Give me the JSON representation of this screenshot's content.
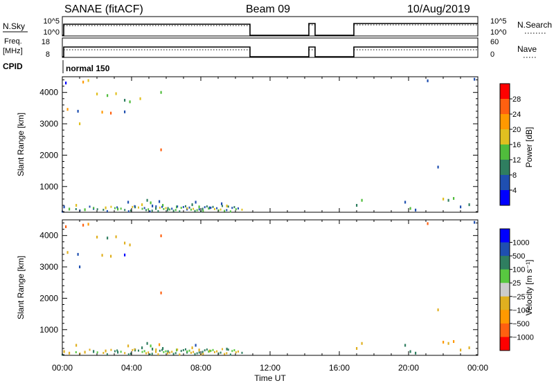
{
  "header": {
    "station": "SANAE (fitACF)",
    "beam": "Beam 09",
    "date": "10/Aug/2019"
  },
  "status_panels": {
    "nsky": {
      "label": "N.Sky",
      "tick_top": "10^5",
      "tick_bottom": "10^0"
    },
    "nsearch": {
      "label": "N.Search",
      "tick_top": "10^5",
      "tick_bottom": "10^0"
    },
    "freq": {
      "label_line1": "Freq.",
      "label_line2": "[MHz]",
      "tick_top": "18",
      "tick_bottom": "8"
    },
    "nave": {
      "label": "Nave",
      "tick_top": "60",
      "tick_bottom": "0"
    },
    "cpid": {
      "label": "CPID",
      "mode": "normal 150"
    }
  },
  "chart_data": [
    {
      "type": "scatter",
      "title": "",
      "xlabel": "",
      "ylabel": "Slant Range [km]",
      "xlim": [
        0,
        24
      ],
      "ylim": [
        180,
        4500
      ],
      "yticks": [
        1000,
        2000,
        3000,
        4000
      ],
      "colorbar": {
        "label": "Power [dB]",
        "ticks": [
          "4",
          "8",
          "12",
          "16",
          "20",
          "24",
          "28"
        ],
        "range": [
          0,
          32
        ],
        "colors": [
          "#0000ff",
          "#1f4fb0",
          "#2f7e60",
          "#50bd3c",
          "#e0c020",
          "#ff9900",
          "#ff6010",
          "#ff0000"
        ]
      },
      "points": [
        {
          "t": 0.2,
          "r": 4300,
          "v": 3
        },
        {
          "t": 1.2,
          "r": 4330,
          "v": 22
        },
        {
          "t": 1.5,
          "r": 4380,
          "v": 18
        },
        {
          "t": 2.0,
          "r": 3950,
          "v": 16
        },
        {
          "t": 2.6,
          "r": 3900,
          "v": 14
        },
        {
          "t": 3.1,
          "r": 3960,
          "v": 16
        },
        {
          "t": 3.6,
          "r": 3750,
          "v": 10
        },
        {
          "t": 3.9,
          "r": 3700,
          "v": 12
        },
        {
          "t": 0.3,
          "r": 3460,
          "v": 22
        },
        {
          "t": 0.9,
          "r": 3400,
          "v": 4
        },
        {
          "t": 2.3,
          "r": 3370,
          "v": 20
        },
        {
          "t": 2.8,
          "r": 3340,
          "v": 24
        },
        {
          "t": 3.6,
          "r": 3380,
          "v": 6
        },
        {
          "t": 1.0,
          "r": 3000,
          "v": 16
        },
        {
          "t": 4.5,
          "r": 3800,
          "v": 16
        },
        {
          "t": 5.7,
          "r": 4000,
          "v": 12
        },
        {
          "t": 5.7,
          "r": 2170,
          "v": 26
        },
        {
          "t": 21.1,
          "r": 4370,
          "v": 4
        },
        {
          "t": 23.8,
          "r": 4420,
          "v": 6
        },
        {
          "t": 21.7,
          "r": 1620,
          "v": 6
        },
        {
          "t": 0.1,
          "r": 350,
          "v": 4
        },
        {
          "t": 0.4,
          "r": 280,
          "v": 12
        },
        {
          "t": 0.8,
          "r": 400,
          "v": 18
        },
        {
          "t": 1.3,
          "r": 260,
          "v": 12
        },
        {
          "t": 1.8,
          "r": 300,
          "v": 4
        },
        {
          "t": 2.5,
          "r": 320,
          "v": 18
        },
        {
          "t": 3.2,
          "r": 280,
          "v": 12
        },
        {
          "t": 3.8,
          "r": 500,
          "v": 4
        },
        {
          "t": 4.2,
          "r": 350,
          "v": 8
        },
        {
          "t": 4.6,
          "r": 420,
          "v": 16
        },
        {
          "t": 4.9,
          "r": 560,
          "v": 8
        },
        {
          "t": 5.1,
          "r": 480,
          "v": 12
        },
        {
          "t": 5.2,
          "r": 380,
          "v": 4
        },
        {
          "t": 5.4,
          "r": 300,
          "v": 8
        },
        {
          "t": 5.6,
          "r": 520,
          "v": 4
        },
        {
          "t": 5.8,
          "r": 400,
          "v": 12
        },
        {
          "t": 6.1,
          "r": 300,
          "v": 8
        },
        {
          "t": 6.6,
          "r": 350,
          "v": 12
        },
        {
          "t": 7.2,
          "r": 280,
          "v": 4
        },
        {
          "t": 7.5,
          "r": 420,
          "v": 8
        },
        {
          "t": 7.7,
          "r": 500,
          "v": 4
        },
        {
          "t": 7.9,
          "r": 350,
          "v": 12
        },
        {
          "t": 8.1,
          "r": 280,
          "v": 8
        },
        {
          "t": 8.5,
          "r": 320,
          "v": 4
        },
        {
          "t": 9.2,
          "r": 450,
          "v": 4
        },
        {
          "t": 9.5,
          "r": 380,
          "v": 16
        },
        {
          "t": 17.3,
          "r": 560,
          "v": 12
        },
        {
          "t": 17.0,
          "r": 400,
          "v": 8
        },
        {
          "t": 19.8,
          "r": 500,
          "v": 4
        },
        {
          "t": 20.1,
          "r": 300,
          "v": 12
        },
        {
          "t": 20.4,
          "r": 250,
          "v": 4
        },
        {
          "t": 22.0,
          "r": 600,
          "v": 16
        },
        {
          "t": 22.3,
          "r": 560,
          "v": 8
        },
        {
          "t": 22.6,
          "r": 620,
          "v": 12
        },
        {
          "t": 23.0,
          "r": 350,
          "v": 4
        },
        {
          "t": 23.5,
          "r": 420,
          "v": 8
        }
      ]
    },
    {
      "type": "scatter",
      "title": "",
      "xlabel": "Time UT",
      "ylabel": "Slant Range [km]",
      "xlim": [
        0,
        24
      ],
      "ylim": [
        180,
        4500
      ],
      "xticks": [
        "00:00",
        "04:00",
        "08:00",
        "12:00",
        "16:00",
        "20:00",
        "00:00"
      ],
      "yticks": [
        1000,
        2000,
        3000,
        4000
      ],
      "colorbar": {
        "label": "Velocity [m s⁻¹]",
        "ticks": [
          "1000",
          "500",
          "100",
          "25",
          "−25",
          "−100",
          "−500",
          "−1000"
        ],
        "colors": [
          "#0000ff",
          "#1f4fb0",
          "#2f7e60",
          "#58c840",
          "#cccccc",
          "#e0b020",
          "#ff9900",
          "#ff6010",
          "#ff0000"
        ]
      },
      "points": [
        {
          "t": 0.2,
          "r": 4280,
          "v": -1000
        },
        {
          "t": 1.2,
          "r": 4330,
          "v": -1000
        },
        {
          "t": 1.5,
          "r": 4360,
          "v": -500
        },
        {
          "t": 2.0,
          "r": 3950,
          "v": -100
        },
        {
          "t": 2.6,
          "r": 3920,
          "v": 100
        },
        {
          "t": 3.1,
          "r": 3960,
          "v": -100
        },
        {
          "t": 3.6,
          "r": 3760,
          "v": -100
        },
        {
          "t": 3.9,
          "r": 3700,
          "v": -100
        },
        {
          "t": 0.3,
          "r": 3460,
          "v": -100
        },
        {
          "t": 0.9,
          "r": 3400,
          "v": 500
        },
        {
          "t": 2.3,
          "r": 3370,
          "v": -100
        },
        {
          "t": 2.8,
          "r": 3340,
          "v": -100
        },
        {
          "t": 3.6,
          "r": 3380,
          "v": 1000
        },
        {
          "t": 1.0,
          "r": 3000,
          "v": 500
        },
        {
          "t": 5.7,
          "r": 3990,
          "v": -1000
        },
        {
          "t": 5.7,
          "r": 2170,
          "v": -1000
        },
        {
          "t": 21.1,
          "r": 4380,
          "v": -1000
        },
        {
          "t": 23.8,
          "r": 4420,
          "v": 500
        },
        {
          "t": 21.7,
          "r": 1630,
          "v": -100
        },
        {
          "t": 0.1,
          "r": 300,
          "v": -100
        },
        {
          "t": 0.4,
          "r": 250,
          "v": -100
        },
        {
          "t": 0.8,
          "r": 500,
          "v": -100
        },
        {
          "t": 1.3,
          "r": 280,
          "v": -100
        },
        {
          "t": 1.8,
          "r": 300,
          "v": 100
        },
        {
          "t": 2.5,
          "r": 320,
          "v": -100
        },
        {
          "t": 3.2,
          "r": 280,
          "v": 100
        },
        {
          "t": 3.8,
          "r": 480,
          "v": -100
        },
        {
          "t": 4.2,
          "r": 350,
          "v": 100
        },
        {
          "t": 4.6,
          "r": 420,
          "v": 100
        },
        {
          "t": 4.9,
          "r": 560,
          "v": 100
        },
        {
          "t": 5.1,
          "r": 480,
          "v": 25
        },
        {
          "t": 5.2,
          "r": 380,
          "v": 100
        },
        {
          "t": 5.4,
          "r": 300,
          "v": -100
        },
        {
          "t": 5.6,
          "r": 520,
          "v": -500
        },
        {
          "t": 5.8,
          "r": 400,
          "v": 100
        },
        {
          "t": 6.1,
          "r": 300,
          "v": 100
        },
        {
          "t": 6.6,
          "r": 350,
          "v": 25
        },
        {
          "t": 7.2,
          "r": 280,
          "v": 100
        },
        {
          "t": 7.5,
          "r": 420,
          "v": -100
        },
        {
          "t": 7.7,
          "r": 500,
          "v": 500
        },
        {
          "t": 7.9,
          "r": 350,
          "v": -100
        },
        {
          "t": 8.1,
          "r": 280,
          "v": 100
        },
        {
          "t": 8.5,
          "r": 320,
          "v": -100
        },
        {
          "t": 9.5,
          "r": 380,
          "v": 100
        },
        {
          "t": 17.3,
          "r": 560,
          "v": -100
        },
        {
          "t": 17.0,
          "r": 400,
          "v": -100
        },
        {
          "t": 19.8,
          "r": 500,
          "v": 100
        },
        {
          "t": 20.1,
          "r": 300,
          "v": 100
        },
        {
          "t": 20.4,
          "r": 250,
          "v": 100
        },
        {
          "t": 22.0,
          "r": 600,
          "v": -500
        },
        {
          "t": 22.3,
          "r": 560,
          "v": -100
        },
        {
          "t": 22.6,
          "r": 620,
          "v": -500
        },
        {
          "t": 23.0,
          "r": 350,
          "v": -100
        },
        {
          "t": 23.5,
          "r": 420,
          "v": -100
        }
      ]
    }
  ]
}
